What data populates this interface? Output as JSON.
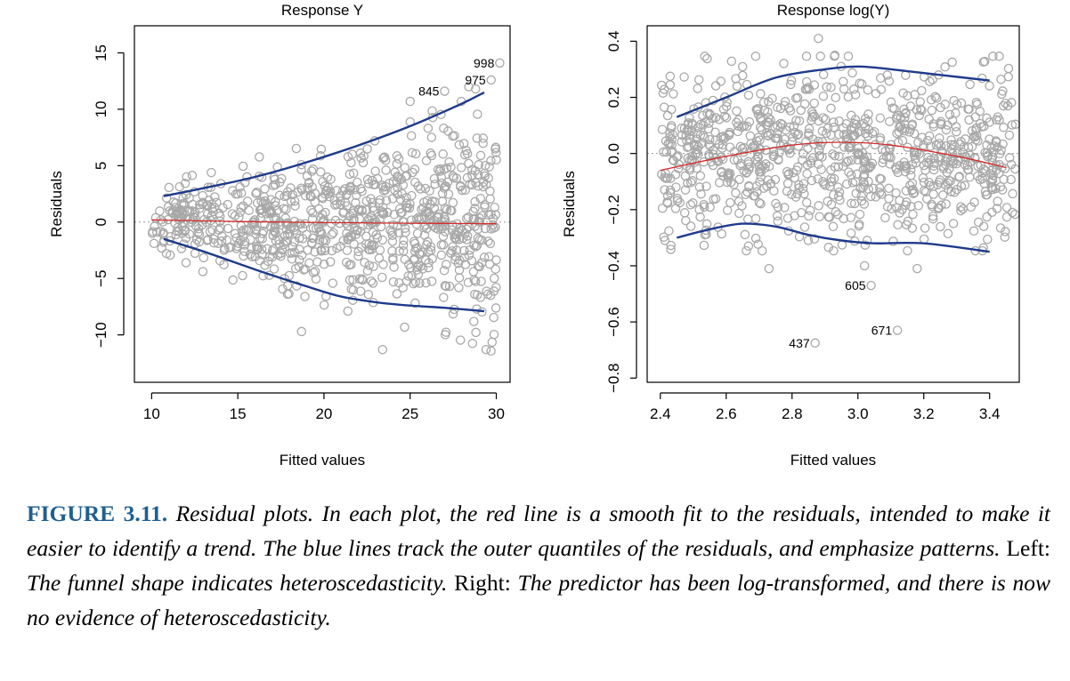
{
  "chart_data": [
    {
      "type": "scatter",
      "title": "Response Y",
      "xlabel": "Fitted values",
      "ylabel": "Residuals",
      "xlim": [
        9.0,
        30.8
      ],
      "ylim": [
        -14.2,
        17.4
      ],
      "xticks": [
        10,
        15,
        20,
        25,
        30
      ],
      "yticks": [
        -10,
        -5,
        0,
        5,
        10,
        15
      ],
      "reference_line_y": 0,
      "x_range": [
        10,
        30
      ],
      "spread": {
        "kind": "funnel",
        "half_width_at_x_min": 3.0,
        "half_width_at_x_max": 11.0,
        "center": 0
      },
      "point_color": "#a8a8a8",
      "red_line": {
        "color": "#d62a2a",
        "x": [
          10,
          15,
          20,
          25,
          30
        ],
        "y": [
          0.2,
          0.05,
          -0.05,
          -0.1,
          -0.15
        ]
      },
      "blue_lines": {
        "color": "#1e3a8c",
        "upper": {
          "x": [
            10.7,
            13,
            16,
            19,
            22,
            25,
            28,
            29.3
          ],
          "y": [
            2.3,
            3.0,
            4.0,
            5.3,
            6.8,
            8.5,
            10.5,
            11.5
          ]
        },
        "lower": {
          "x": [
            10.7,
            13,
            16,
            19,
            21,
            23,
            25,
            27,
            29.3
          ],
          "y": [
            -1.5,
            -2.6,
            -4.2,
            -5.7,
            -6.6,
            -7.1,
            -7.4,
            -7.6,
            -7.9
          ]
        }
      },
      "outliers": [
        {
          "label": "998",
          "x": 30.2,
          "y": 14.1
        },
        {
          "label": "975",
          "x": 29.7,
          "y": 12.6
        },
        {
          "label": "845",
          "x": 27.0,
          "y": 11.6
        }
      ],
      "extra_points": [
        {
          "x": 23.4,
          "y": -11.3
        },
        {
          "x": 18.7,
          "y": -9.7
        },
        {
          "x": 25.0,
          "y": 10.7
        },
        {
          "x": 28.4,
          "y": 12.0
        },
        {
          "x": 28.8,
          "y": 11.8
        }
      ]
    },
    {
      "type": "scatter",
      "title": "Response log(Y)",
      "xlabel": "Fitted values",
      "ylabel": "Residuals",
      "xlim": [
        2.36,
        3.49
      ],
      "ylim": [
        -0.815,
        0.455
      ],
      "xticks": [
        2.4,
        2.6,
        2.8,
        3.0,
        3.2,
        3.4
      ],
      "xtick_labels": [
        "2.4",
        "2.6",
        "2.8",
        "3.0",
        "3.2",
        "3.4"
      ],
      "yticks": [
        -0.8,
        -0.6,
        -0.4,
        -0.2,
        0.0,
        0.2,
        0.4
      ],
      "ytick_labels": [
        "−0.8",
        "−0.6",
        "−0.4",
        "−0.2",
        "0.0",
        "0.2",
        "0.4"
      ],
      "reference_line_y": 0,
      "x_range": [
        2.4,
        3.48
      ],
      "spread": {
        "kind": "constant",
        "half_width": 0.33,
        "center": 0
      },
      "point_color": "#a8a8a8",
      "red_line": {
        "color": "#d62a2a",
        "x": [
          2.4,
          2.6,
          2.8,
          2.95,
          3.1,
          3.3,
          3.45
        ],
        "y": [
          -0.06,
          -0.01,
          0.03,
          0.04,
          0.03,
          -0.01,
          -0.05
        ]
      },
      "blue_lines": {
        "color": "#1e3a8c",
        "upper": {
          "x": [
            2.45,
            2.6,
            2.75,
            2.9,
            3.0,
            3.1,
            3.25,
            3.4
          ],
          "y": [
            0.13,
            0.2,
            0.27,
            0.3,
            0.31,
            0.3,
            0.28,
            0.26
          ]
        },
        "lower": {
          "x": [
            2.45,
            2.55,
            2.65,
            2.75,
            2.85,
            2.95,
            3.05,
            3.2,
            3.4
          ],
          "y": [
            -0.3,
            -0.27,
            -0.25,
            -0.26,
            -0.29,
            -0.31,
            -0.32,
            -0.32,
            -0.35
          ]
        }
      },
      "outliers": [
        {
          "label": "605",
          "x": 3.04,
          "y": -0.47
        },
        {
          "label": "671",
          "x": 3.12,
          "y": -0.63
        },
        {
          "label": "437",
          "x": 2.87,
          "y": -0.675
        }
      ],
      "extra_points": [
        {
          "x": 2.88,
          "y": 0.41
        },
        {
          "x": 2.93,
          "y": 0.35
        },
        {
          "x": 2.73,
          "y": -0.41
        },
        {
          "x": 3.18,
          "y": -0.41
        },
        {
          "x": 3.02,
          "y": -0.4
        }
      ]
    }
  ],
  "caption": {
    "label": "FIGURE 3.11.",
    "part1": "Residual plots. In each plot, the red line is a smooth fit to the residuals, intended to make it easier to identify a trend. The blue lines track the outer quantiles of the residuals, and emphasize patterns.",
    "left_word": "Left:",
    "part2": "The funnel shape indicates heteroscedasticity.",
    "right_word": "Right:",
    "part3": "The predictor has been log-transformed, and there is now no evidence of heteroscedasticity."
  }
}
